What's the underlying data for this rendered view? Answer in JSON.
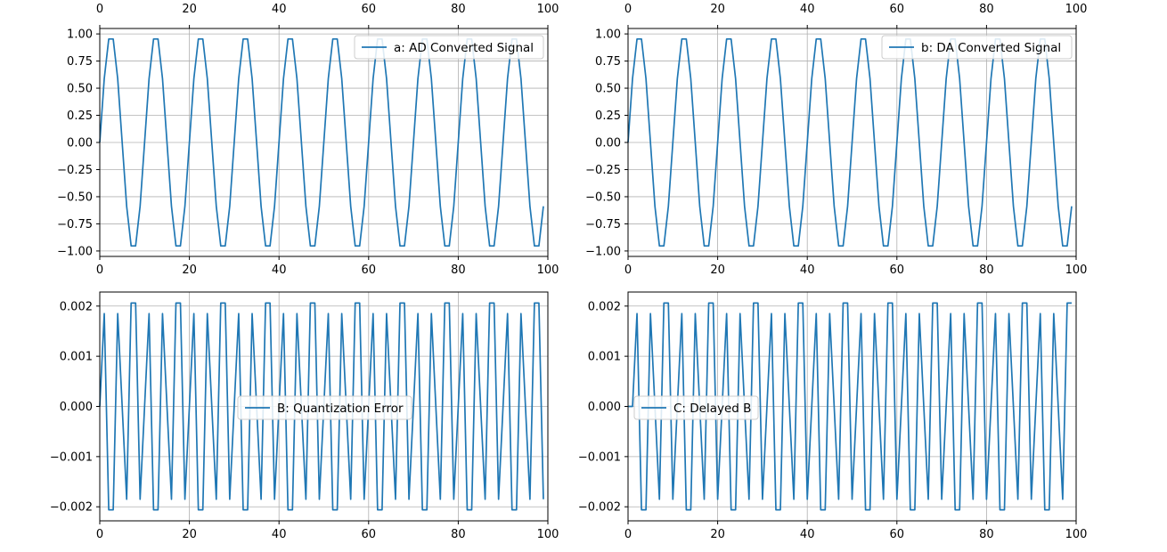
{
  "colors": {
    "series": "#1f77b4",
    "grid": "#b0b0b0",
    "frame": "#000000"
  },
  "chart_data": [
    {
      "type": "line",
      "title": "",
      "xlabel": "",
      "ylabel": "",
      "xlim": [
        0,
        100
      ],
      "ylim": [
        -1.05,
        1.05
      ],
      "xticks": [
        "0",
        "20",
        "40",
        "60",
        "80",
        "100"
      ],
      "top_xticks": [
        "0",
        "20",
        "40",
        "60",
        "80",
        "100"
      ],
      "yticks": [
        "1.00",
        "0.75",
        "0.50",
        "0.25",
        "0.00",
        "−0.25",
        "−0.50",
        "−0.75",
        "−1.00"
      ],
      "grid": true,
      "legend_position": "top-right",
      "series": [
        {
          "name": "a: AD Converted Signal",
          "x": [
            0,
            1,
            2,
            3,
            4,
            5,
            6,
            7,
            8,
            9,
            10,
            11,
            12,
            13,
            14,
            15,
            16,
            17,
            18,
            19,
            20,
            21,
            22,
            23,
            24,
            25,
            26,
            27,
            28,
            29,
            30,
            31,
            32,
            33,
            34,
            35,
            36,
            37,
            38,
            39,
            40,
            41,
            42,
            43,
            44,
            45,
            46,
            47,
            48,
            49,
            50,
            51,
            52,
            53,
            54,
            55,
            56,
            57,
            58,
            59,
            60,
            61,
            62,
            63,
            64,
            65,
            66,
            67,
            68,
            69,
            70,
            71,
            72,
            73,
            74,
            75,
            76,
            77,
            78,
            79,
            80,
            81,
            82,
            83,
            84,
            85,
            86,
            87,
            88,
            89,
            90,
            91,
            92,
            93,
            94,
            95,
            96,
            97,
            98,
            99
          ],
          "y": [
            0.0,
            0.588,
            0.953,
            0.953,
            0.588,
            0.0,
            -0.588,
            -0.953,
            -0.953,
            -0.588,
            0.0,
            0.588,
            0.953,
            0.953,
            0.588,
            0.0,
            -0.588,
            -0.953,
            -0.953,
            -0.588,
            0.0,
            0.588,
            0.953,
            0.953,
            0.588,
            0.0,
            -0.588,
            -0.953,
            -0.953,
            -0.588,
            0.0,
            0.588,
            0.953,
            0.953,
            0.588,
            0.0,
            -0.588,
            -0.953,
            -0.953,
            -0.588,
            0.0,
            0.588,
            0.953,
            0.953,
            0.588,
            0.0,
            -0.588,
            -0.953,
            -0.953,
            -0.588,
            0.0,
            0.588,
            0.953,
            0.953,
            0.588,
            0.0,
            -0.588,
            -0.953,
            -0.953,
            -0.588,
            0.0,
            0.588,
            0.953,
            0.953,
            0.588,
            0.0,
            -0.588,
            -0.953,
            -0.953,
            -0.588,
            0.0,
            0.588,
            0.953,
            0.953,
            0.588,
            0.0,
            -0.588,
            -0.953,
            -0.953,
            -0.588,
            0.0,
            0.588,
            0.953,
            0.953,
            0.588,
            0.0,
            -0.588,
            -0.953,
            -0.953,
            -0.588,
            0.0,
            0.588,
            0.953,
            0.953,
            0.588,
            0.0,
            -0.588,
            -0.953,
            -0.953,
            -0.588
          ]
        }
      ]
    },
    {
      "type": "line",
      "title": "",
      "xlabel": "",
      "ylabel": "",
      "xlim": [
        0,
        100
      ],
      "ylim": [
        -1.05,
        1.05
      ],
      "xticks": [
        "0",
        "20",
        "40",
        "60",
        "80",
        "100"
      ],
      "top_xticks": [
        "0",
        "20",
        "40",
        "60",
        "80",
        "100"
      ],
      "yticks": [
        "1.00",
        "0.75",
        "0.50",
        "0.25",
        "0.00",
        "−0.25",
        "−0.50",
        "−0.75",
        "−1.00"
      ],
      "grid": true,
      "legend_position": "top-right",
      "series": [
        {
          "name": "b: DA Converted Signal",
          "x": [
            0,
            1,
            2,
            3,
            4,
            5,
            6,
            7,
            8,
            9,
            10,
            11,
            12,
            13,
            14,
            15,
            16,
            17,
            18,
            19,
            20,
            21,
            22,
            23,
            24,
            25,
            26,
            27,
            28,
            29,
            30,
            31,
            32,
            33,
            34,
            35,
            36,
            37,
            38,
            39,
            40,
            41,
            42,
            43,
            44,
            45,
            46,
            47,
            48,
            49,
            50,
            51,
            52,
            53,
            54,
            55,
            56,
            57,
            58,
            59,
            60,
            61,
            62,
            63,
            64,
            65,
            66,
            67,
            68,
            69,
            70,
            71,
            72,
            73,
            74,
            75,
            76,
            77,
            78,
            79,
            80,
            81,
            82,
            83,
            84,
            85,
            86,
            87,
            88,
            89,
            90,
            91,
            92,
            93,
            94,
            95,
            96,
            97,
            98,
            99
          ],
          "y": [
            0.0,
            0.588,
            0.953,
            0.953,
            0.588,
            0.0,
            -0.588,
            -0.953,
            -0.953,
            -0.588,
            0.0,
            0.588,
            0.953,
            0.953,
            0.588,
            0.0,
            -0.588,
            -0.953,
            -0.953,
            -0.588,
            0.0,
            0.588,
            0.953,
            0.953,
            0.588,
            0.0,
            -0.588,
            -0.953,
            -0.953,
            -0.588,
            0.0,
            0.588,
            0.953,
            0.953,
            0.588,
            0.0,
            -0.588,
            -0.953,
            -0.953,
            -0.588,
            0.0,
            0.588,
            0.953,
            0.953,
            0.588,
            0.0,
            -0.588,
            -0.953,
            -0.953,
            -0.588,
            0.0,
            0.588,
            0.953,
            0.953,
            0.588,
            0.0,
            -0.588,
            -0.953,
            -0.953,
            -0.588,
            0.0,
            0.588,
            0.953,
            0.953,
            0.588,
            0.0,
            -0.588,
            -0.953,
            -0.953,
            -0.588,
            0.0,
            0.588,
            0.953,
            0.953,
            0.588,
            0.0,
            -0.588,
            -0.953,
            -0.953,
            -0.588,
            0.0,
            0.588,
            0.953,
            0.953,
            0.588,
            0.0,
            -0.588,
            -0.953,
            -0.953,
            -0.588,
            0.0,
            0.588,
            0.953,
            0.953,
            0.588,
            0.0,
            -0.588,
            -0.953,
            -0.953,
            -0.588
          ]
        }
      ]
    },
    {
      "type": "line",
      "title": "",
      "xlabel": "",
      "ylabel": "",
      "xlim": [
        0,
        100
      ],
      "ylim": [
        -0.00228,
        0.00228
      ],
      "xticks": [
        "0",
        "20",
        "40",
        "60",
        "80",
        "100"
      ],
      "yticks": [
        "0.002",
        "0.001",
        "0.000",
        "−0.001",
        "−0.002"
      ],
      "grid": true,
      "legend_position": "center",
      "series": [
        {
          "name": "B: Quantization Error",
          "x": [
            0,
            1,
            2,
            3,
            4,
            5,
            6,
            7,
            8,
            9,
            10,
            11,
            12,
            13,
            14,
            15,
            16,
            17,
            18,
            19,
            20,
            21,
            22,
            23,
            24,
            25,
            26,
            27,
            28,
            29,
            30,
            31,
            32,
            33,
            34,
            35,
            36,
            37,
            38,
            39,
            40,
            41,
            42,
            43,
            44,
            45,
            46,
            47,
            48,
            49,
            50,
            51,
            52,
            53,
            54,
            55,
            56,
            57,
            58,
            59,
            60,
            61,
            62,
            63,
            64,
            65,
            66,
            67,
            68,
            69,
            70,
            71,
            72,
            73,
            74,
            75,
            76,
            77,
            78,
            79,
            80,
            81,
            82,
            83,
            84,
            85,
            86,
            87,
            88,
            89,
            90,
            91,
            92,
            93,
            94,
            95,
            96,
            97,
            98,
            99
          ],
          "y": [
            0.0,
            0.00185,
            -0.00206,
            -0.00206,
            0.00185,
            0.0,
            -0.00185,
            0.00206,
            0.00206,
            -0.00185,
            0.0,
            0.00185,
            -0.00206,
            -0.00206,
            0.00185,
            0.0,
            -0.00185,
            0.00206,
            0.00206,
            -0.00185,
            0.0,
            0.00185,
            -0.00206,
            -0.00206,
            0.00185,
            0.0,
            -0.00185,
            0.00206,
            0.00206,
            -0.00185,
            0.0,
            0.00185,
            -0.00206,
            -0.00206,
            0.00185,
            0.0,
            -0.00185,
            0.00206,
            0.00206,
            -0.00185,
            0.0,
            0.00185,
            -0.00206,
            -0.00206,
            0.00185,
            0.0,
            -0.00185,
            0.00206,
            0.00206,
            -0.00185,
            0.0,
            0.00185,
            -0.00206,
            -0.00206,
            0.00185,
            0.0,
            -0.00185,
            0.00206,
            0.00206,
            -0.00185,
            0.0,
            0.00185,
            -0.00206,
            -0.00206,
            0.00185,
            0.0,
            -0.00185,
            0.00206,
            0.00206,
            -0.00185,
            0.0,
            0.00185,
            -0.00206,
            -0.00206,
            0.00185,
            0.0,
            -0.00185,
            0.00206,
            0.00206,
            -0.00185,
            0.0,
            0.00185,
            -0.00206,
            -0.00206,
            0.00185,
            0.0,
            -0.00185,
            0.00206,
            0.00206,
            -0.00185,
            0.0,
            0.00185,
            -0.00206,
            -0.00206,
            0.00185,
            0.0,
            -0.00185,
            0.00206,
            0.00206,
            -0.00185
          ]
        }
      ]
    },
    {
      "type": "line",
      "title": "",
      "xlabel": "",
      "ylabel": "",
      "xlim": [
        0,
        100
      ],
      "ylim": [
        -0.00228,
        0.00228
      ],
      "xticks": [
        "0",
        "20",
        "40",
        "60",
        "80",
        "100"
      ],
      "yticks": [
        "0.002",
        "0.001",
        "0.000",
        "−0.001",
        "−0.002"
      ],
      "grid": true,
      "legend_position": "center-left",
      "series": [
        {
          "name": "C: Delayed B",
          "x": [
            0,
            1,
            2,
            3,
            4,
            5,
            6,
            7,
            8,
            9,
            10,
            11,
            12,
            13,
            14,
            15,
            16,
            17,
            18,
            19,
            20,
            21,
            22,
            23,
            24,
            25,
            26,
            27,
            28,
            29,
            30,
            31,
            32,
            33,
            34,
            35,
            36,
            37,
            38,
            39,
            40,
            41,
            42,
            43,
            44,
            45,
            46,
            47,
            48,
            49,
            50,
            51,
            52,
            53,
            54,
            55,
            56,
            57,
            58,
            59,
            60,
            61,
            62,
            63,
            64,
            65,
            66,
            67,
            68,
            69,
            70,
            71,
            72,
            73,
            74,
            75,
            76,
            77,
            78,
            79,
            80,
            81,
            82,
            83,
            84,
            85,
            86,
            87,
            88,
            89,
            90,
            91,
            92,
            93,
            94,
            95,
            96,
            97,
            98,
            99
          ],
          "y": [
            0.0,
            0.0,
            0.00185,
            -0.00206,
            -0.00206,
            0.00185,
            0.0,
            -0.00185,
            0.00206,
            0.00206,
            -0.00185,
            0.0,
            0.00185,
            -0.00206,
            -0.00206,
            0.00185,
            0.0,
            -0.00185,
            0.00206,
            0.00206,
            -0.00185,
            0.0,
            0.00185,
            -0.00206,
            -0.00206,
            0.00185,
            0.0,
            -0.00185,
            0.00206,
            0.00206,
            -0.00185,
            0.0,
            0.00185,
            -0.00206,
            -0.00206,
            0.00185,
            0.0,
            -0.00185,
            0.00206,
            0.00206,
            -0.00185,
            0.0,
            0.00185,
            -0.00206,
            -0.00206,
            0.00185,
            0.0,
            -0.00185,
            0.00206,
            0.00206,
            -0.00185,
            0.0,
            0.00185,
            -0.00206,
            -0.00206,
            0.00185,
            0.0,
            -0.00185,
            0.00206,
            0.00206,
            -0.00185,
            0.0,
            0.00185,
            -0.00206,
            -0.00206,
            0.00185,
            0.0,
            -0.00185,
            0.00206,
            0.00206,
            -0.00185,
            0.0,
            0.00185,
            -0.00206,
            -0.00206,
            0.00185,
            0.0,
            -0.00185,
            0.00206,
            0.00206,
            -0.00185,
            0.0,
            0.00185,
            -0.00206,
            -0.00206,
            0.00185,
            0.0,
            -0.00185,
            0.00206,
            0.00206,
            -0.00185,
            0.0,
            0.00185,
            -0.00206,
            -0.00206,
            0.00185,
            0.0,
            -0.00185,
            0.00206,
            0.00206
          ]
        }
      ]
    }
  ]
}
